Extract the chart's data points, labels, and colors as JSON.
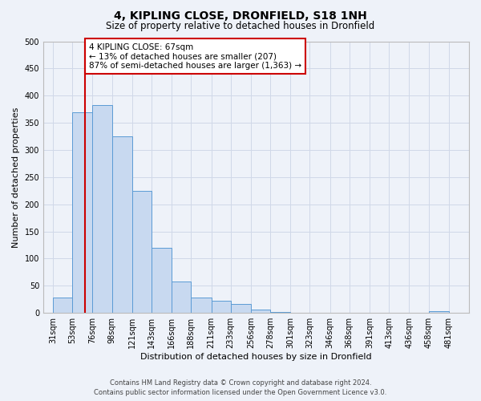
{
  "title": "4, KIPLING CLOSE, DRONFIELD, S18 1NH",
  "subtitle": "Size of property relative to detached houses in Dronfield",
  "xlabel": "Distribution of detached houses by size in Dronfield",
  "ylabel": "Number of detached properties",
  "bar_left_edges": [
    31,
    53,
    76,
    98,
    121,
    143,
    166,
    188,
    211,
    233,
    256,
    278,
    301,
    323,
    346,
    368,
    391,
    413,
    436,
    458
  ],
  "bar_heights": [
    28,
    370,
    383,
    325,
    225,
    120,
    58,
    28,
    22,
    16,
    6,
    2,
    1,
    0,
    0,
    0,
    0,
    0,
    0,
    3
  ],
  "bar_widths": [
    22,
    23,
    22,
    23,
    22,
    23,
    22,
    23,
    22,
    23,
    22,
    23,
    22,
    23,
    22,
    23,
    22,
    23,
    22,
    23
  ],
  "xtick_labels": [
    "31sqm",
    "53sqm",
    "76sqm",
    "98sqm",
    "121sqm",
    "143sqm",
    "166sqm",
    "188sqm",
    "211sqm",
    "233sqm",
    "256sqm",
    "278sqm",
    "301sqm",
    "323sqm",
    "346sqm",
    "368sqm",
    "391sqm",
    "413sqm",
    "436sqm",
    "458sqm",
    "481sqm"
  ],
  "xtick_positions": [
    31,
    53,
    76,
    98,
    121,
    143,
    166,
    188,
    211,
    233,
    256,
    278,
    301,
    323,
    346,
    368,
    391,
    413,
    436,
    458,
    481
  ],
  "ylim": [
    0,
    500
  ],
  "yticks": [
    0,
    50,
    100,
    150,
    200,
    250,
    300,
    350,
    400,
    450,
    500
  ],
  "xlim_left": 20,
  "xlim_right": 504,
  "bar_color": "#c8d9f0",
  "bar_edge_color": "#5b9bd5",
  "vline_x": 67,
  "vline_color": "#cc0000",
  "annotation_text": "4 KIPLING CLOSE: 67sqm\n← 13% of detached houses are smaller (207)\n87% of semi-detached houses are larger (1,363) →",
  "annotation_box_color": "#ffffff",
  "annotation_box_edge_color": "#cc0000",
  "footer_line1": "Contains HM Land Registry data © Crown copyright and database right 2024.",
  "footer_line2": "Contains public sector information licensed under the Open Government Licence v3.0.",
  "bg_color": "#eef2f9",
  "grid_color": "#d0d8e8",
  "title_fontsize": 10,
  "subtitle_fontsize": 8.5,
  "axis_label_fontsize": 8,
  "tick_fontsize": 7,
  "annotation_fontsize": 7.5,
  "footer_fontsize": 6
}
